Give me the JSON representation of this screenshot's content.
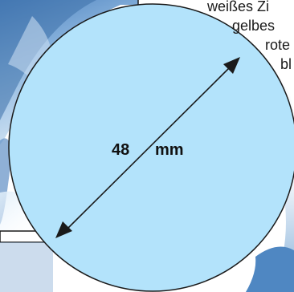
{
  "diagram": {
    "diameter_value": "48",
    "diameter_unit": "mm",
    "background_text_lines": [
      "weißes Zi",
      "gelbes",
      "rote",
      "bl"
    ]
  },
  "colors": {
    "circle_fill": "#b3e3fb",
    "circle_stroke": "#1a1a1a",
    "arrow": "#1a1a1a",
    "background_sky": "#6f9fd0",
    "background_white": "#ffffff"
  }
}
